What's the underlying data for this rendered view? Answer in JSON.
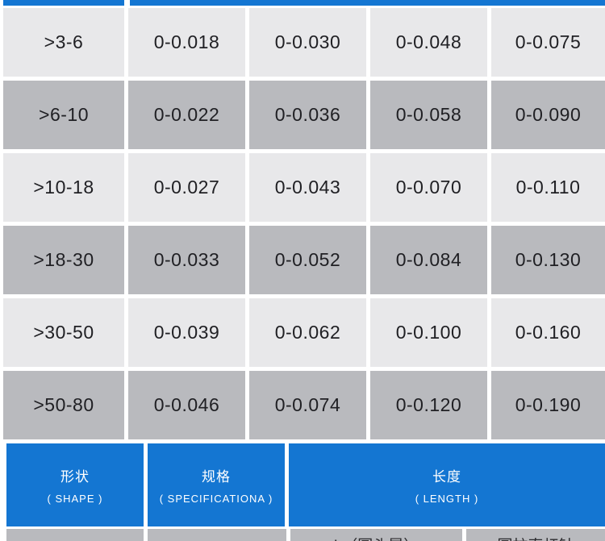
{
  "colors": {
    "accent_blue": "#1476d2",
    "row_light": "#e8e8ea",
    "row_dark": "#b9babe",
    "text_dark": "#202024",
    "header_text": "#ffffff"
  },
  "tolerance_table": {
    "rows": [
      {
        "range": ">3-6",
        "v1": "0-0.018",
        "v2": "0-0.030",
        "v3": "0-0.048",
        "v4": "0-0.075"
      },
      {
        "range": ">6-10",
        "v1": "0-0.022",
        "v2": "0-0.036",
        "v3": "0-0.058",
        "v4": "0-0.090"
      },
      {
        "range": ">10-18",
        "v1": "0-0.027",
        "v2": "0-0.043",
        "v3": "0-0.070",
        "v4": "0-0.110"
      },
      {
        "range": ">18-30",
        "v1": "0-0.033",
        "v2": "0-0.052",
        "v3": "0-0.084",
        "v4": "0-0.130"
      },
      {
        "range": ">30-50",
        "v1": "0-0.039",
        "v2": "0-0.062",
        "v3": "0-0.100",
        "v4": "0-0.160"
      },
      {
        "range": ">50-80",
        "v1": "0-0.046",
        "v2": "0-0.074",
        "v3": "0-0.120",
        "v4": "0-0.190"
      }
    ]
  },
  "spec_header": {
    "col1_zh": "形状",
    "col1_en": "( SHAPE )",
    "col2_zh": "规格",
    "col2_en": "( SPECIFICATIONA )",
    "col3_zh": "长度",
    "col3_en": "( LENGTH )"
  },
  "partial_bottom_row": {
    "cell3_text_clipped": "L（圆头晃）",
    "cell4_text_clipped": "圆柱直杆针"
  }
}
